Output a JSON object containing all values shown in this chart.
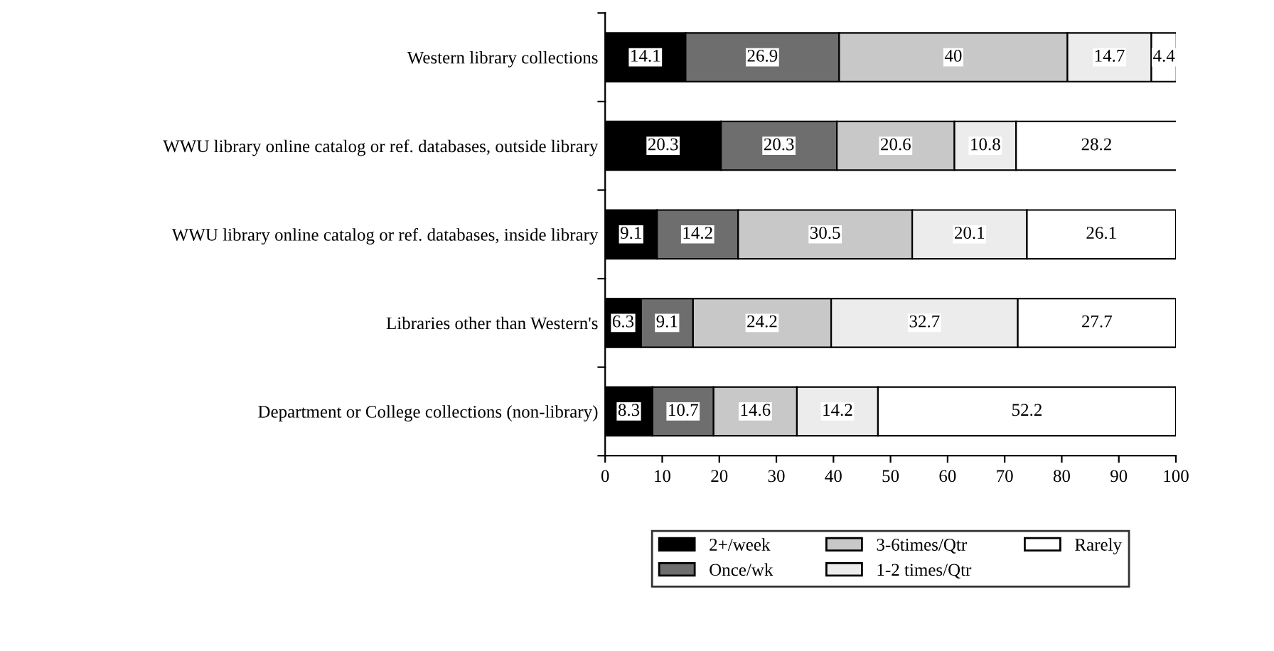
{
  "chart_data": {
    "type": "bar",
    "orientation": "horizontal",
    "stacked": true,
    "categories": [
      "Western library collections",
      "WWU library online catalog or ref. databases, outside library",
      "WWU library online catalog or ref. databases, inside library",
      "Libraries other than Western's",
      "Department or College collections (non-library)"
    ],
    "series": [
      {
        "name": "2+/week",
        "color": "#000000",
        "values": [
          14.1,
          20.3,
          9.1,
          6.3,
          8.3
        ]
      },
      {
        "name": "Once/wk",
        "color": "#6e6e6e",
        "values": [
          26.9,
          20.3,
          14.2,
          9.1,
          10.7
        ]
      },
      {
        "name": "3-6times/Qtr",
        "color": "#c8c8c8",
        "values": [
          40,
          20.6,
          30.5,
          24.2,
          14.6
        ]
      },
      {
        "name": "1-2 times/Qtr",
        "color": "#ececec",
        "values": [
          14.7,
          10.8,
          20.1,
          32.7,
          14.2
        ]
      },
      {
        "name": "Rarely",
        "color": "#ffffff",
        "values": [
          4.4,
          28.2,
          26.1,
          27.7,
          52.2
        ]
      }
    ],
    "xlim": [
      0,
      100
    ],
    "xticks": [
      0,
      10,
      20,
      30,
      40,
      50,
      60,
      70,
      80,
      90,
      100
    ],
    "data_labels": true,
    "legend": "bottom"
  }
}
